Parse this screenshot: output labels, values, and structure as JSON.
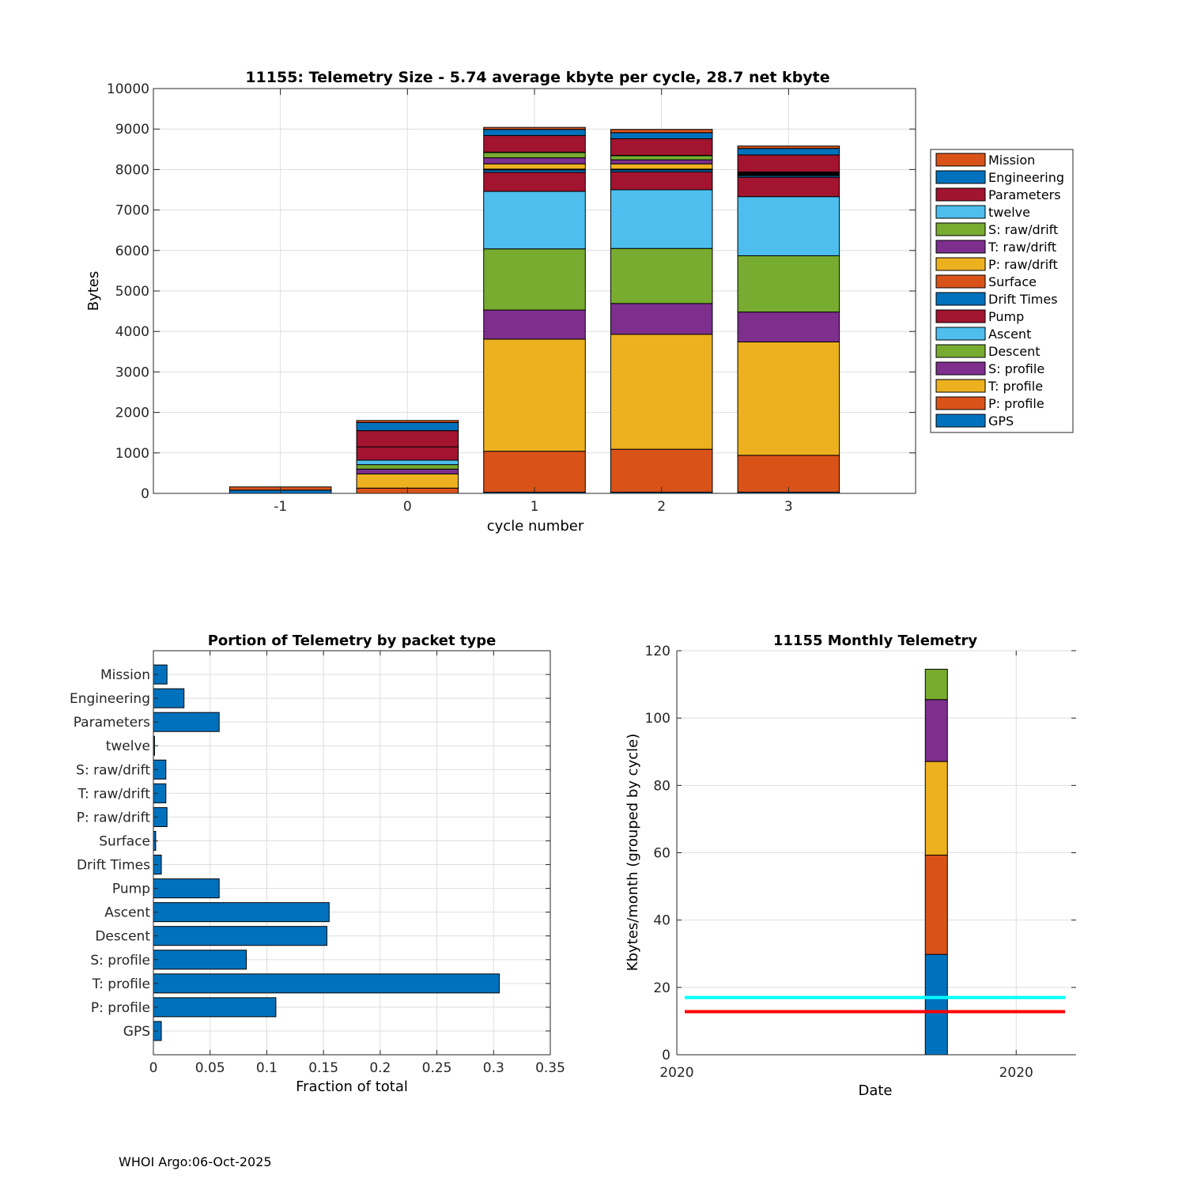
{
  "footer": "WHOI Argo:06-Oct-2025",
  "colors": {
    "blue": "#0072BD",
    "orange": "#D95319",
    "yellow": "#EDB120",
    "purple": "#7E2F8E",
    "green": "#77AC30",
    "cyan": "#4DBEEE",
    "maroon": "#A2142F",
    "grid": "#dedede",
    "line_cyan": "#00FFFF",
    "line_red": "#FF0000"
  },
  "chart_data": [
    {
      "id": "stacked-telemetry",
      "type": "bar",
      "stacked": true,
      "title": "11155: Telemetry Size - 5.74 average kbyte per cycle,   28.7 net kbyte",
      "xlabel": "cycle number",
      "ylabel": "Bytes",
      "categories": [
        "-1",
        "0",
        "1",
        "2",
        "3"
      ],
      "xlim": [
        -2,
        4
      ],
      "ylim": [
        0,
        10000
      ],
      "yticks": [
        0,
        1000,
        2000,
        3000,
        4000,
        5000,
        6000,
        7000,
        8000,
        9000,
        10000
      ],
      "grid": true,
      "legend_position": "right",
      "series": [
        {
          "name": "GPS",
          "color": "blue",
          "values": [
            0,
            0,
            30,
            30,
            30
          ]
        },
        {
          "name": "P: profile",
          "color": "orange",
          "values": [
            0,
            130,
            1010,
            1060,
            910
          ]
        },
        {
          "name": "T: profile",
          "color": "yellow",
          "values": [
            0,
            350,
            2770,
            2840,
            2800
          ]
        },
        {
          "name": "S: profile",
          "color": "purple",
          "values": [
            0,
            120,
            720,
            760,
            740
          ]
        },
        {
          "name": "Descent",
          "color": "green",
          "values": [
            0,
            110,
            1510,
            1360,
            1390
          ]
        },
        {
          "name": "Ascent",
          "color": "cyan",
          "values": [
            0,
            110,
            1420,
            1450,
            1460
          ]
        },
        {
          "name": "Pump",
          "color": "maroon",
          "values": [
            0,
            330,
            470,
            440,
            480
          ]
        },
        {
          "name": "Drift Times",
          "color": "blue",
          "values": [
            0,
            0,
            60,
            50,
            40
          ]
        },
        {
          "name": "Surface",
          "color": "orange",
          "values": [
            0,
            0,
            20,
            20,
            20
          ]
        },
        {
          "name": "P: raw/drift",
          "color": "yellow",
          "values": [
            0,
            0,
            130,
            130,
            20
          ]
        },
        {
          "name": "T: raw/drift",
          "color": "purple",
          "values": [
            0,
            0,
            150,
            100,
            20
          ]
        },
        {
          "name": "S: raw/drift",
          "color": "green",
          "values": [
            0,
            0,
            130,
            100,
            20
          ]
        },
        {
          "name": "twelve",
          "color": "cyan",
          "values": [
            0,
            0,
            10,
            10,
            10
          ]
        },
        {
          "name": "Parameters",
          "color": "maroon",
          "values": [
            0,
            400,
            410,
            410,
            420
          ]
        },
        {
          "name": "Engineering",
          "color": "blue",
          "values": [
            80,
            200,
            150,
            150,
            160
          ]
        },
        {
          "name": "Mission",
          "color": "orange",
          "values": [
            80,
            50,
            50,
            80,
            60
          ]
        }
      ]
    },
    {
      "id": "portion-by-packet",
      "type": "bar",
      "orientation": "horizontal",
      "title": "Portion of Telemetry by packet type",
      "xlabel": "Fraction of total",
      "ylabel": "",
      "xlim": [
        0,
        0.35
      ],
      "xticks": [
        0,
        0.05,
        0.1,
        0.15,
        0.2,
        0.25,
        0.3,
        0.35
      ],
      "xtick_labels": [
        "0",
        "0.05",
        "0.1",
        "0.15",
        "0.2",
        "0.25",
        "0.3",
        "0.35"
      ],
      "grid": true,
      "color": "blue",
      "categories": [
        "Mission",
        "Engineering",
        "Parameters",
        "twelve",
        "S: raw/drift",
        "T: raw/drift",
        "P: raw/drift",
        "Surface",
        "Drift Times",
        "Pump",
        "Ascent",
        "Descent",
        "S: profile",
        "T: profile",
        "P: profile",
        "GPS"
      ],
      "values": [
        0.012,
        0.027,
        0.058,
        0.001,
        0.011,
        0.011,
        0.012,
        0.002,
        0.007,
        0.058,
        0.155,
        0.153,
        0.082,
        0.305,
        0.108,
        0.007
      ]
    },
    {
      "id": "monthly-telemetry",
      "type": "bar",
      "stacked": true,
      "title": "11155 Monthly Telemetry",
      "xlabel": "Date",
      "ylabel": "Kbytes/month (grouped by cycle)",
      "xlim": [
        0,
        1
      ],
      "x_ticks": [
        0.0,
        0.85
      ],
      "x_tick_labels": [
        "2020",
        "2020"
      ],
      "bar_x": 0.65,
      "ylim": [
        0,
        120
      ],
      "yticks": [
        0,
        20,
        40,
        60,
        80,
        100,
        120
      ],
      "grid": true,
      "segments": [
        {
          "color": "blue",
          "value": 29.8
        },
        {
          "color": "orange",
          "value": 29.5
        },
        {
          "color": "yellow",
          "value": 27.8
        },
        {
          "color": "purple",
          "value": 18.4
        },
        {
          "color": "green",
          "value": 9.0
        }
      ],
      "hlines": [
        {
          "color": "line_cyan",
          "y": 17.0
        },
        {
          "color": "line_red",
          "y": 12.8
        }
      ]
    }
  ]
}
